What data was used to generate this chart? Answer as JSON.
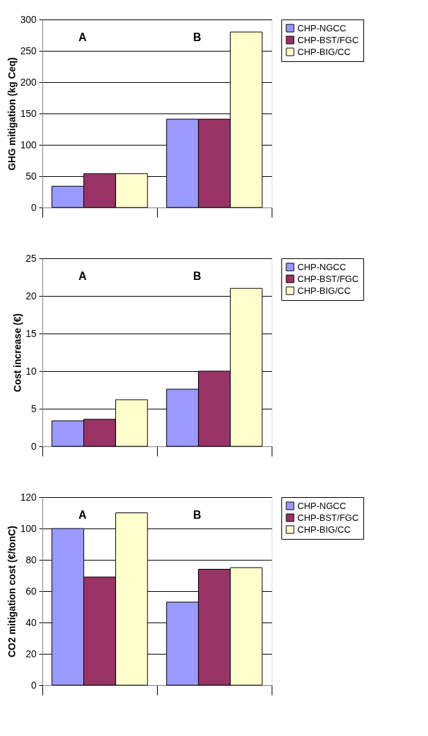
{
  "chart_data": [
    {
      "type": "bar",
      "categories": [
        "A",
        "B"
      ],
      "ylabel": "GHG mitigation (kg Ceq)",
      "ylim": [
        0,
        300
      ],
      "yticks": [
        0,
        50,
        100,
        150,
        200,
        250,
        300
      ],
      "grid": "y",
      "legend": "right",
      "series": [
        {
          "name": "CHP-NGCC",
          "color": "#9999ff",
          "values": [
            34,
            141
          ]
        },
        {
          "name": "CHP-BST/FGC",
          "color": "#993366",
          "values": [
            54,
            141
          ]
        },
        {
          "name": "CHP-BIG/CC",
          "color": "#ffffcc",
          "values": [
            54,
            280
          ]
        }
      ]
    },
    {
      "type": "bar",
      "categories": [
        "A",
        "B"
      ],
      "ylabel": "Cost increase (€)",
      "ylim": [
        0,
        25
      ],
      "yticks": [
        0,
        5,
        10,
        15,
        20,
        25
      ],
      "grid": "y",
      "legend": "right",
      "series": [
        {
          "name": "CHP-NGCC",
          "color": "#9999ff",
          "values": [
            3.4,
            7.6
          ]
        },
        {
          "name": "CHP-BST/FGC",
          "color": "#993366",
          "values": [
            3.6,
            10
          ]
        },
        {
          "name": "CHP-BIG/CC",
          "color": "#ffffcc",
          "values": [
            6.2,
            21
          ]
        }
      ]
    },
    {
      "type": "bar",
      "categories": [
        "A",
        "B"
      ],
      "ylabel": "CO2 mitigation cost (€/tonC)",
      "ylim": [
        0,
        120
      ],
      "yticks": [
        0,
        20,
        40,
        60,
        80,
        100,
        120
      ],
      "grid": "y",
      "legend": "right",
      "series": [
        {
          "name": "CHP-NGCC",
          "color": "#9999ff",
          "values": [
            100,
            53
          ]
        },
        {
          "name": "CHP-BST/FGC",
          "color": "#993366",
          "values": [
            69,
            74
          ]
        },
        {
          "name": "CHP-BIG/CC",
          "color": "#ffffcc",
          "values": [
            110,
            75
          ]
        }
      ]
    }
  ]
}
